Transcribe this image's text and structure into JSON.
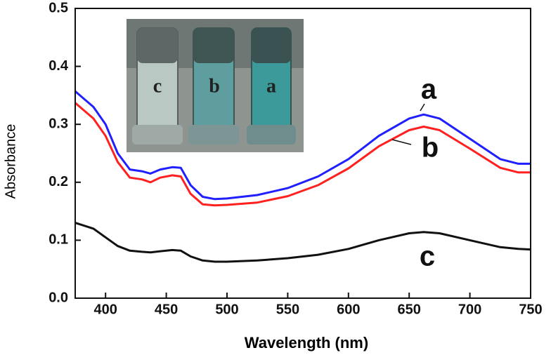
{
  "chart_data": {
    "type": "line",
    "xlabel": "Wavelength (nm)",
    "ylabel": "Absorbance",
    "x": [
      375,
      390,
      400,
      410,
      420,
      430,
      437,
      445,
      455,
      462,
      470,
      480,
      490,
      500,
      525,
      550,
      575,
      600,
      625,
      650,
      662,
      675,
      700,
      725,
      740,
      750
    ],
    "series": [
      {
        "name": "a",
        "color": "#1f1fff",
        "values": [
          0.357,
          0.33,
          0.3,
          0.25,
          0.222,
          0.219,
          0.215,
          0.222,
          0.226,
          0.225,
          0.195,
          0.175,
          0.171,
          0.172,
          0.178,
          0.19,
          0.21,
          0.24,
          0.28,
          0.31,
          0.317,
          0.31,
          0.275,
          0.24,
          0.232,
          0.232
        ]
      },
      {
        "name": "b",
        "color": "#ff2020",
        "values": [
          0.337,
          0.31,
          0.28,
          0.235,
          0.208,
          0.205,
          0.2,
          0.208,
          0.212,
          0.21,
          0.18,
          0.162,
          0.16,
          0.161,
          0.165,
          0.176,
          0.195,
          0.224,
          0.262,
          0.29,
          0.296,
          0.29,
          0.258,
          0.225,
          0.217,
          0.217
        ]
      },
      {
        "name": "c",
        "color": "#111111",
        "values": [
          0.13,
          0.12,
          0.105,
          0.09,
          0.082,
          0.08,
          0.079,
          0.081,
          0.083,
          0.082,
          0.072,
          0.065,
          0.063,
          0.063,
          0.065,
          0.069,
          0.075,
          0.085,
          0.1,
          0.112,
          0.114,
          0.112,
          0.1,
          0.088,
          0.085,
          0.084
        ]
      }
    ],
    "xlim": [
      375,
      750
    ],
    "xticks": [
      400,
      450,
      500,
      550,
      600,
      650,
      700,
      750
    ],
    "ylim": [
      0,
      0.5
    ],
    "yticks": [
      {
        "value": 0,
        "label": "0.0"
      },
      0.1,
      0.2,
      0.3,
      0.4,
      0.5
    ],
    "grid": false,
    "inset_labels": [
      "c",
      "b",
      "a"
    ]
  }
}
